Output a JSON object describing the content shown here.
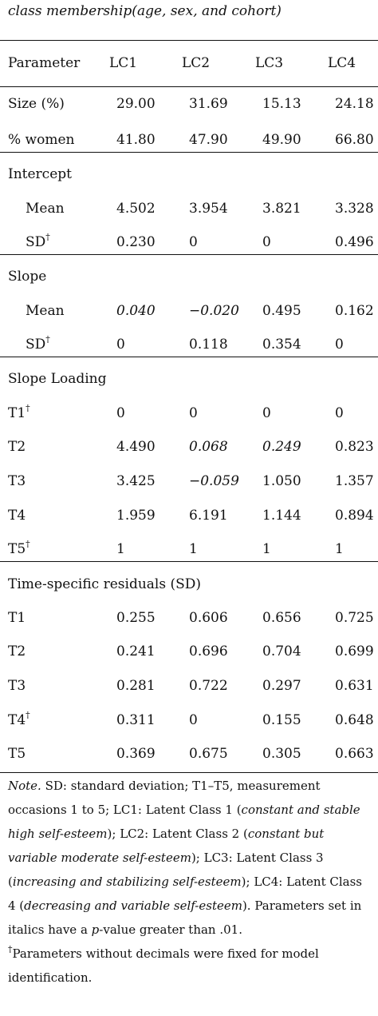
{
  "caption": "class membership(age, sex, and cohort)",
  "header": [
    "Parameter",
    "LC1",
    "LC2",
    "LC3",
    "LC4"
  ],
  "rows": [
    {
      "label": "Size (%)",
      "values": [
        "29.00",
        "31.69",
        "15.13",
        "24.18"
      ]
    },
    {
      "label": "% women",
      "values": [
        "41.80",
        "47.90",
        "49.90",
        "66.80"
      ]
    },
    {
      "section": "Intercept"
    },
    {
      "label": "Mean",
      "values": [
        "4.502",
        "3.954",
        "3.821",
        "3.328"
      ]
    },
    {
      "label": "SD",
      "dagger": "†",
      "values": [
        "0.230",
        "0",
        "0",
        "0.496"
      ]
    },
    {
      "section": "Slope"
    },
    {
      "label": "Mean",
      "values": [
        "0.040",
        "−0.020",
        "0.495",
        "0.162"
      ],
      "italic": [
        true,
        true,
        false,
        false
      ]
    },
    {
      "label": "SD",
      "dagger": "†",
      "values": [
        "0",
        "0.118",
        "0.354",
        "0"
      ]
    },
    {
      "section": "Slope Loading"
    },
    {
      "label": "T1",
      "dagger": "†",
      "values": [
        "0",
        "0",
        "0",
        "0"
      ]
    },
    {
      "label": "T2",
      "values": [
        "4.490",
        "0.068",
        "0.249",
        "0.823"
      ],
      "italic": [
        false,
        true,
        true,
        false
      ]
    },
    {
      "label": "T3",
      "values": [
        "3.425",
        "−0.059",
        "1.050",
        "1.357"
      ],
      "italic": [
        false,
        true,
        false,
        false
      ]
    },
    {
      "label": "T4",
      "values": [
        "1.959",
        "6.191",
        "1.144",
        "0.894"
      ]
    },
    {
      "label": "T5",
      "dagger": "†",
      "values": [
        "1",
        "1",
        "1",
        "1"
      ]
    },
    {
      "section": "Time-specific residuals (SD)"
    },
    {
      "label": "T1",
      "values": [
        "0.255",
        "0.606",
        "0.656",
        "0.725"
      ]
    },
    {
      "label": "T2",
      "values": [
        "0.241",
        "0.696",
        "0.704",
        "0.699"
      ]
    },
    {
      "label": "T3",
      "values": [
        "0.281",
        "0.722",
        "0.297",
        "0.631"
      ]
    },
    {
      "label": "T4",
      "dagger": "†",
      "values": [
        "0.311",
        "0",
        "0.155",
        "0.648"
      ]
    },
    {
      "label": "T5",
      "values": [
        "0.369",
        "0.675",
        "0.305",
        "0.663"
      ]
    }
  ],
  "note": {
    "lead": "Note.",
    "text1": " SD: standard deviation; T1–T5, measurement occasions 1 to 5; LC1: Latent Class 1 (",
    "lc1": "constant and stable high self-esteem",
    "text2": "); LC2: Latent Class 2 (",
    "lc2": "constant but variable moderate self-esteem",
    "text3": "); LC3: Latent Class 3 (",
    "lc3": "increasing and stabilizing self-esteem",
    "text4": "); LC4: Latent Class 4 (",
    "lc4": "decreasing and variable self-esteem",
    "text5": "). Parameters set in italics have a ",
    "p": "p",
    "text6": "-value greater than .01.",
    "dagger": "†",
    "footnote": "Parameters without decimals were fixed for model identification."
  }
}
